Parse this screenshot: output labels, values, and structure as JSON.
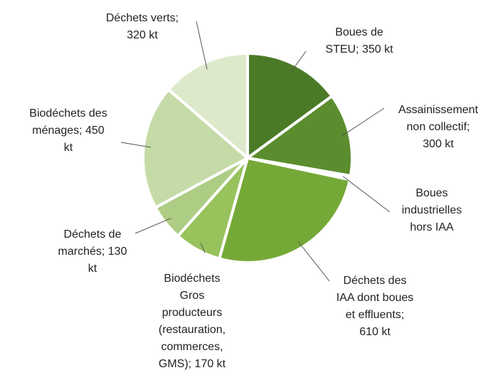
{
  "chart_data": {
    "type": "pie",
    "unit": "kt",
    "slices": [
      {
        "label": "Boues de STEU; 350 kt",
        "value": 350,
        "color": "#4b7a26"
      },
      {
        "label": "Assainissement non collectif; 300 kt",
        "value": 300,
        "color": "#5b8d2e"
      },
      {
        "label": "Boues industrielles hors IAA",
        "value": null,
        "color": "#ffffff"
      },
      {
        "label": "Déchets des IAA dont boues et effluents; 610 kt",
        "value": 610,
        "color": "#75a937"
      },
      {
        "label": "Biodéchets Gros producteurs (restauration, commerces, GMS); 170 kt",
        "value": 170,
        "color": "#97c25c"
      },
      {
        "label": "Déchets de marchés; 130 kt",
        "value": 130,
        "color": "#aecd84"
      },
      {
        "label": "Biodéchets des ménages; 450 kt",
        "value": 450,
        "color": "#c5dba7"
      },
      {
        "label": "Déchets verts; 320 kt",
        "value": 320,
        "color": "#dde9cb"
      }
    ]
  }
}
